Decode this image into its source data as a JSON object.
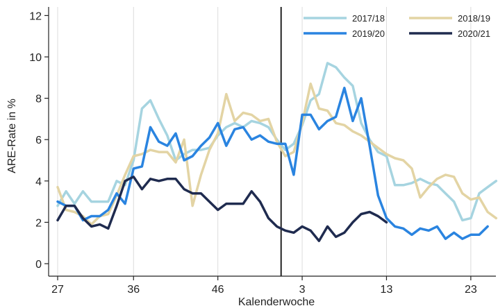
{
  "chart_data": {
    "type": "line",
    "xlabel": "Kalenderwoche",
    "ylabel": "ARE-Rate in %",
    "ylim": [
      0,
      12
    ],
    "yticks": [
      0,
      2,
      4,
      6,
      8,
      10,
      12
    ],
    "week_order": [
      27,
      28,
      29,
      30,
      31,
      32,
      33,
      34,
      35,
      36,
      37,
      38,
      39,
      40,
      41,
      42,
      43,
      44,
      45,
      46,
      47,
      48,
      49,
      50,
      51,
      52,
      53,
      1,
      2,
      3,
      4,
      5,
      6,
      7,
      8,
      9,
      10,
      11,
      12,
      13,
      14,
      15,
      16,
      17,
      18,
      19,
      20,
      21,
      22,
      23,
      24,
      25,
      26
    ],
    "xtick_labels": [
      "27",
      "36",
      "46",
      "3",
      "13",
      "23"
    ],
    "xtick_weeks": [
      27,
      36,
      46,
      3,
      13,
      23
    ],
    "grid_x": true,
    "marker_line_week": 53,
    "legend_position": "top-right",
    "series": [
      {
        "name": "2017/18",
        "color": "#a6d4e0",
        "values": [
          2.8,
          3.5,
          2.9,
          3.5,
          3.0,
          3.0,
          3.0,
          4.0,
          3.8,
          5.0,
          7.5,
          7.9,
          7.0,
          6.2,
          5.0,
          5.3,
          5.5,
          5.5,
          5.6,
          6.2,
          6.6,
          6.8,
          6.6,
          6.9,
          6.8,
          6.6,
          6.0,
          5.5,
          5.8,
          6.7,
          7.9,
          8.2,
          9.7,
          9.5,
          9.0,
          8.6,
          6.8,
          6.0,
          5.4,
          5.2,
          3.8,
          3.8,
          3.9,
          4.1,
          3.9,
          3.8,
          3.4,
          3.0,
          2.1,
          2.2,
          3.4,
          3.7,
          4.0
        ]
      },
      {
        "name": "2018/19",
        "color": "#e3d4a4",
        "values": [
          3.7,
          2.6,
          2.5,
          2.3,
          1.9,
          2.3,
          2.4,
          3.3,
          4.3,
          5.2,
          5.3,
          5.5,
          5.4,
          5.4,
          4.9,
          6.0,
          2.8,
          4.3,
          5.5,
          6.3,
          8.2,
          6.9,
          7.3,
          7.2,
          6.9,
          7.0,
          5.9,
          5.2,
          5.4,
          6.8,
          8.7,
          7.5,
          7.4,
          6.8,
          6.7,
          6.4,
          6.2,
          5.9,
          5.6,
          5.3,
          5.1,
          5.0,
          4.6,
          3.2,
          3.7,
          4.1,
          4.3,
          4.2,
          3.4,
          3.1,
          3.2,
          2.5,
          2.2
        ]
      },
      {
        "name": "2019/20",
        "color": "#2a84e0",
        "values": [
          3.0,
          2.8,
          2.8,
          2.1,
          2.3,
          2.3,
          2.6,
          3.4,
          2.9,
          4.6,
          4.7,
          6.6,
          5.9,
          5.7,
          6.3,
          5.0,
          5.2,
          5.7,
          6.1,
          6.8,
          5.7,
          6.5,
          6.6,
          6.0,
          6.2,
          5.9,
          5.8,
          5.8,
          4.3,
          7.2,
          7.2,
          6.5,
          6.9,
          7.1,
          8.5,
          6.9,
          8.0,
          5.7,
          3.3,
          2.2,
          1.8,
          1.7,
          1.4,
          1.7,
          1.6,
          1.8,
          1.2,
          1.5,
          1.2,
          1.4,
          1.4,
          1.8
        ]
      },
      {
        "name": "2020/21",
        "color": "#1f2b4f",
        "values": [
          2.1,
          2.8,
          2.8,
          2.2,
          1.8,
          1.9,
          1.7,
          2.8,
          4.0,
          4.2,
          3.6,
          4.1,
          4.0,
          4.1,
          4.1,
          3.6,
          3.4,
          3.4,
          3.0,
          2.6,
          2.9,
          2.9,
          2.9,
          3.5,
          3.0,
          2.2,
          1.8,
          1.6,
          1.5,
          1.8,
          1.6,
          1.1,
          1.8,
          1.3,
          1.5,
          2.0,
          2.4,
          2.5,
          2.3,
          2.0
        ]
      }
    ]
  }
}
